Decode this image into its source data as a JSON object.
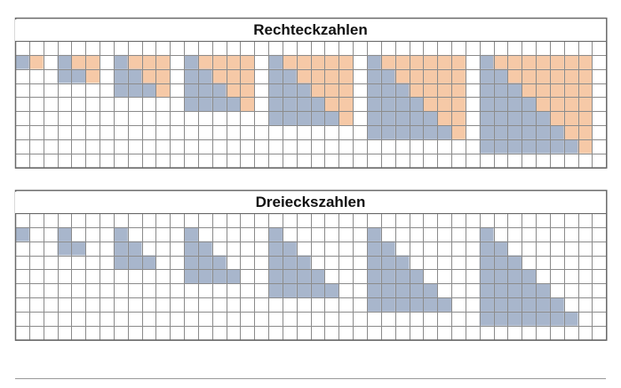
{
  "panels": [
    {
      "title": "Rechteckzahlen",
      "type": "rectangle",
      "n_values": [
        1,
        2,
        3,
        4,
        5,
        6,
        7
      ]
    },
    {
      "title": "Dreieckszahlen",
      "type": "triangle",
      "n_values": [
        1,
        2,
        3,
        4,
        5,
        6,
        7
      ]
    }
  ],
  "colors": {
    "blue": "#a8b6cc",
    "orange": "#f6c9a7",
    "grid": "#8c8c8c",
    "frame": "#6a6a6a",
    "background": "#ffffff"
  }
}
